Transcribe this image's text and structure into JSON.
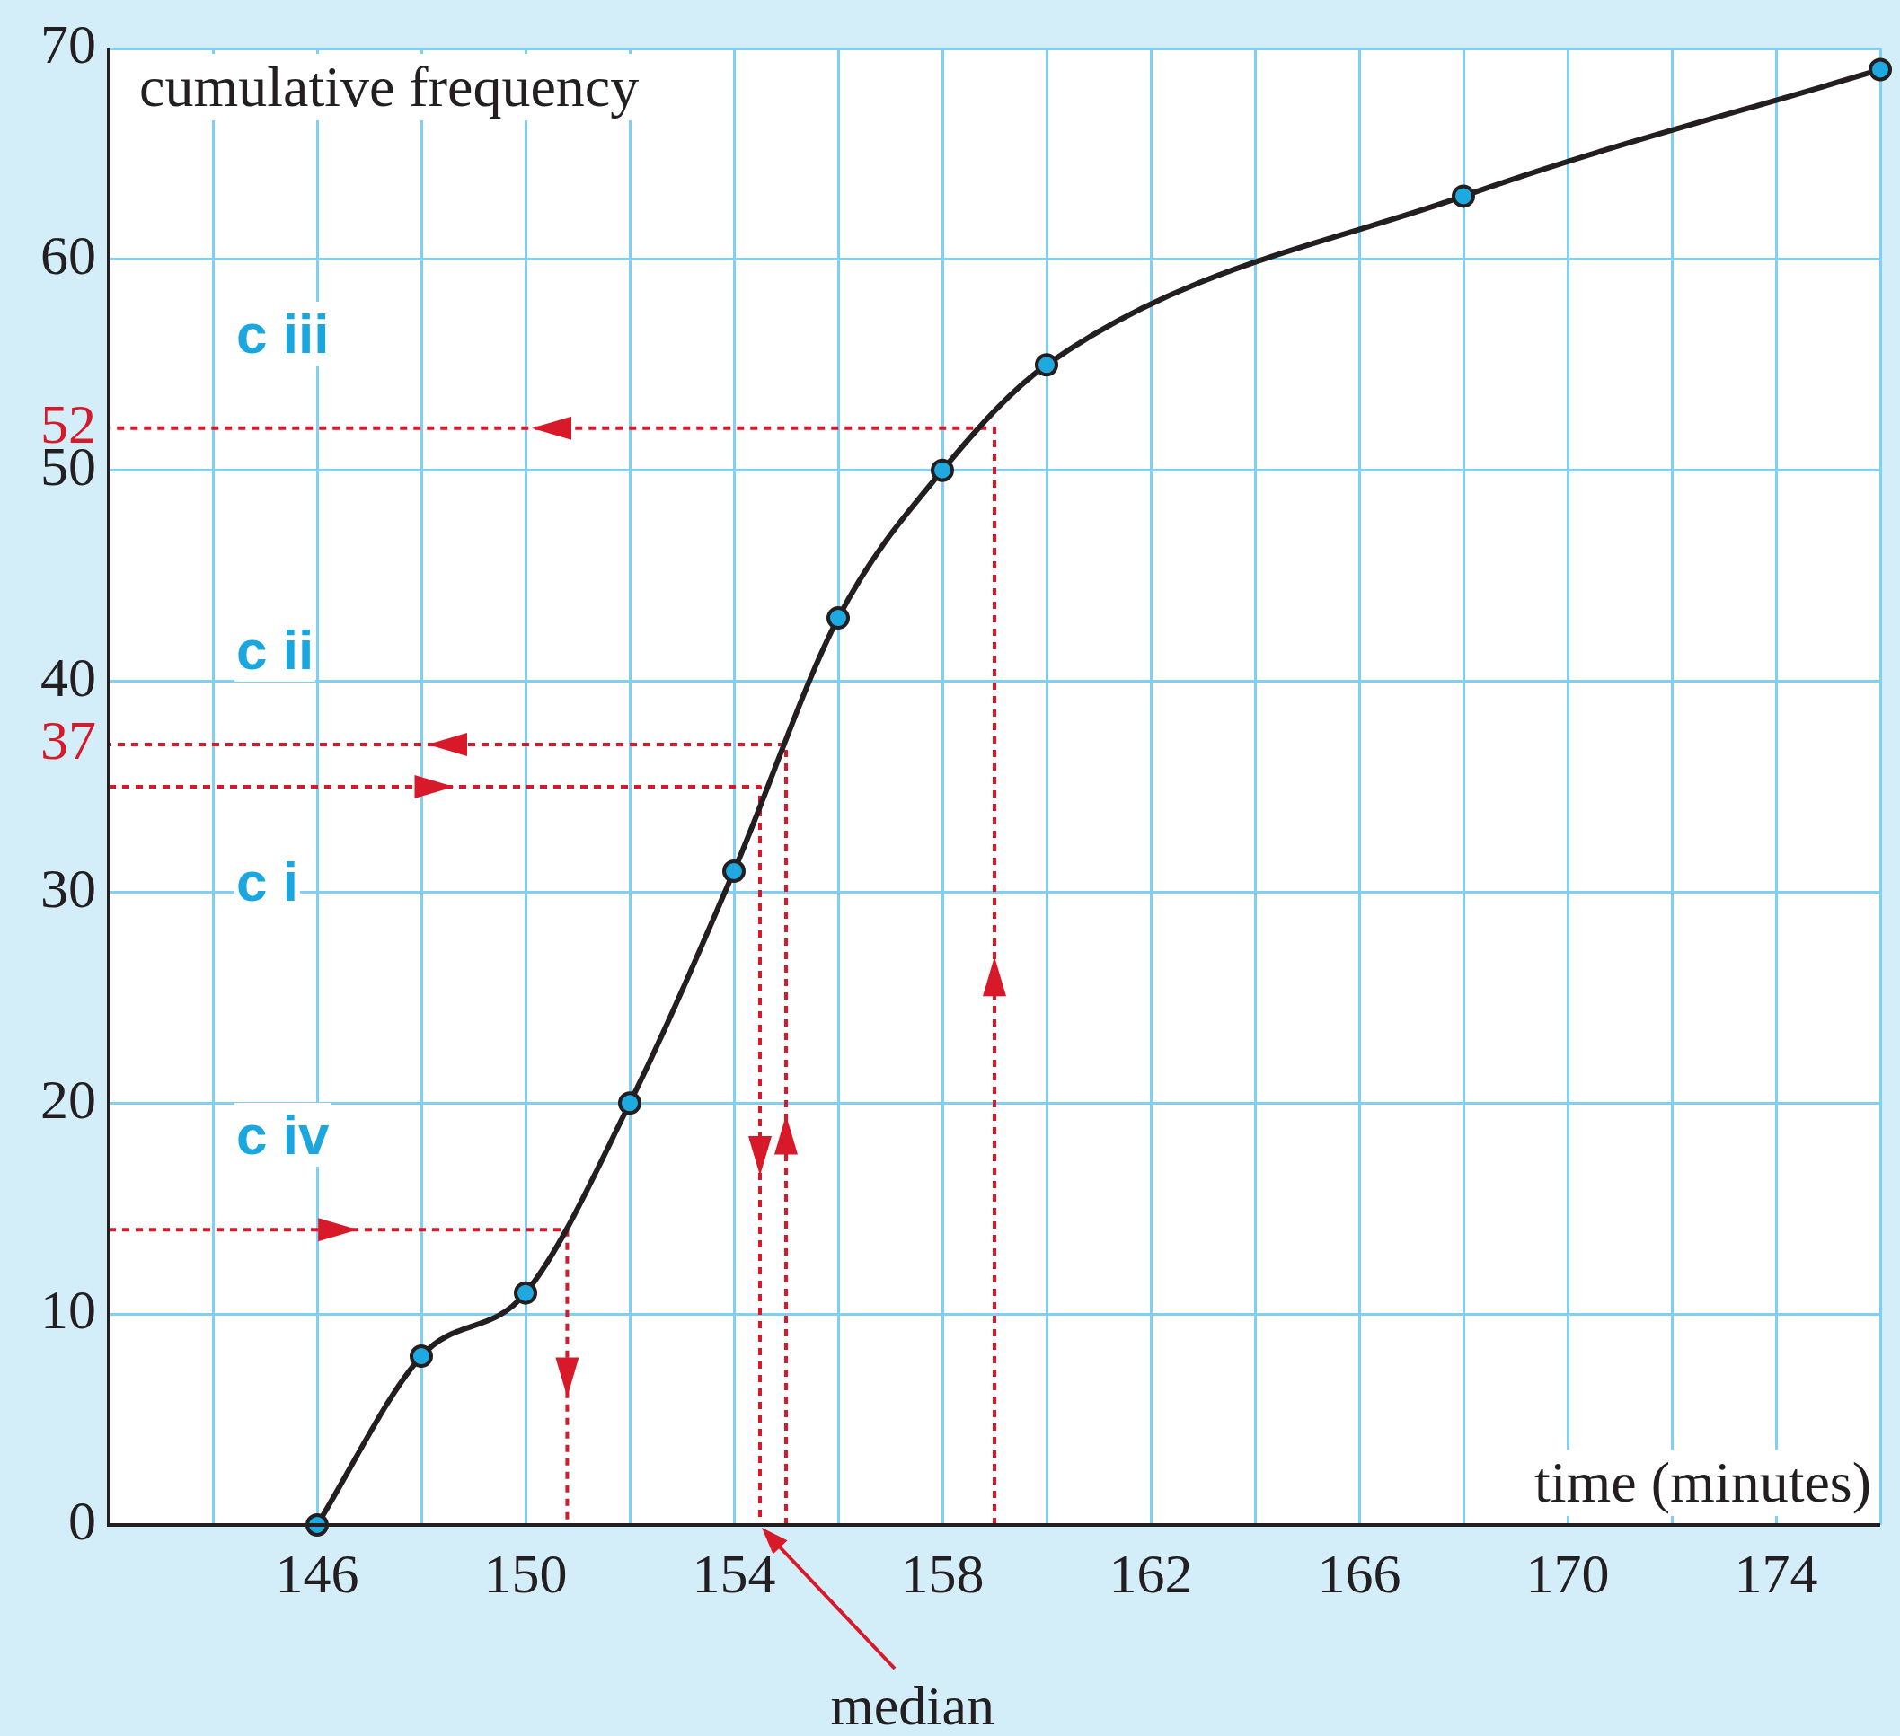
{
  "chart_data": {
    "type": "line",
    "xlabel": "time (minutes)",
    "ylabel": "cumulative frequency",
    "xlim": [
      142,
      176
    ],
    "ylim": [
      0,
      70
    ],
    "xticks": [
      {
        "value": 144,
        "label": null
      },
      146,
      {
        "value": 148,
        "label": null
      },
      150,
      {
        "value": 152,
        "label": null
      },
      154,
      {
        "value": 156,
        "label": null
      },
      158,
      {
        "value": 160,
        "label": null
      },
      162,
      {
        "value": 164,
        "label": null
      },
      166,
      {
        "value": 168,
        "label": null
      },
      170,
      {
        "value": 172,
        "label": null
      },
      174,
      {
        "value": 176,
        "label": null
      }
    ],
    "yticks": [
      0,
      10,
      20,
      30,
      37,
      40,
      50,
      52,
      60,
      70
    ],
    "grid": true,
    "legend": false,
    "series": [
      {
        "color": "#231f20",
        "marker": "circle",
        "line_style": "solid",
        "x": [
          146,
          148,
          150,
          152,
          154,
          156,
          158,
          160,
          168,
          176
        ],
        "values": [
          0,
          8,
          11,
          20,
          31,
          43,
          50,
          55,
          63,
          69
        ]
      },
      {
        "name": "c i",
        "color": "#d7192a",
        "marker": "none",
        "line_style": "dotted",
        "x": [
          142,
          154.5,
          154.5
        ],
        "values": [
          35,
          35,
          0
        ]
      },
      {
        "name": "c ii",
        "color": "#d7192a",
        "marker": "none",
        "line_style": "dotted",
        "x": [
          155,
          155,
          142
        ],
        "values": [
          0,
          37,
          37
        ]
      },
      {
        "name": "c iii",
        "color": "#d7192a",
        "marker": "none",
        "line_style": "dotted",
        "x": [
          159,
          159,
          142
        ],
        "values": [
          0,
          52,
          52
        ]
      },
      {
        "name": "c iv",
        "color": "#d7192a",
        "marker": "none",
        "line_style": "dotted",
        "x": [
          142,
          150.8,
          150.8
        ],
        "values": [
          14,
          14,
          0
        ]
      }
    ],
    "annotations": [
      {
        "text": "median",
        "x": 154.5,
        "y": 0
      }
    ]
  }
}
